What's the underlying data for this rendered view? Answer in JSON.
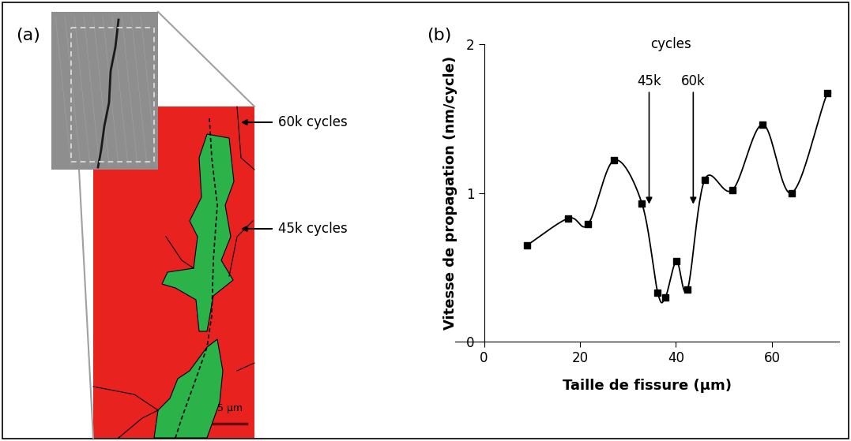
{
  "panel_a": {
    "label": "(a)",
    "arrow_labels": [
      "60k cycles",
      "45k cycles"
    ],
    "scale_bar": "5 µm"
  },
  "chart_data": {
    "type": "line",
    "label": "(b)",
    "x_label": "Taille de fissure (µm)",
    "y_label": "Vitesse de propagation (nm/cycle)",
    "x": [
      9.0,
      17.6,
      21.7,
      27.1,
      32.9,
      36.2,
      37.8,
      40.1,
      42.4,
      46.0,
      51.8,
      58.1,
      64.1,
      71.5
    ],
    "values": [
      0.65,
      0.83,
      0.79,
      1.22,
      0.93,
      0.33,
      0.3,
      0.54,
      0.35,
      1.09,
      1.02,
      1.46,
      1.0,
      1.67
    ],
    "color": "#000000",
    "marker": "square",
    "line_style": "solid",
    "xlim": [
      -6,
      74
    ],
    "xticks": [
      0,
      20,
      40,
      60
    ],
    "ylim": [
      0,
      2
    ],
    "yticks": [
      0,
      1,
      2
    ],
    "grid": false,
    "annotation_title": "cycles",
    "annotations": [
      {
        "text": "45k",
        "x": 34.4,
        "y": 0.91
      },
      {
        "text": "60k",
        "x": 43.6,
        "y": 0.91
      }
    ]
  }
}
